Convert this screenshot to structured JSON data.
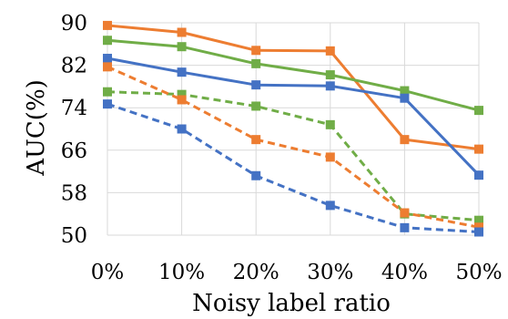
{
  "chart_data": {
    "type": "line",
    "title": "",
    "xlabel": "Noisy label ratio",
    "ylabel": "AUC(%)",
    "categories": [
      "0%",
      "10%",
      "20%",
      "30%",
      "40%",
      "50%"
    ],
    "ylim": [
      50,
      90
    ],
    "yticks": [
      50,
      58,
      66,
      74,
      82,
      90
    ],
    "grid": "both",
    "legend": "none",
    "series": [
      {
        "color": "#ed7d31",
        "dash": "solid",
        "marker": "square",
        "values": [
          89.5,
          88.2,
          84.8,
          84.7,
          68.0,
          66.2
        ]
      },
      {
        "color": "#70ad47",
        "dash": "solid",
        "marker": "square",
        "values": [
          86.7,
          85.5,
          82.3,
          80.2,
          77.2,
          73.5
        ]
      },
      {
        "color": "#4472c4",
        "dash": "solid",
        "marker": "square",
        "values": [
          83.3,
          80.7,
          78.3,
          78.1,
          75.8,
          61.3
        ]
      },
      {
        "color": "#70ad47",
        "dash": "dashed",
        "marker": "square",
        "values": [
          77.0,
          76.5,
          74.3,
          70.8,
          54.0,
          52.8
        ]
      },
      {
        "color": "#ed7d31",
        "dash": "dashed",
        "marker": "square",
        "values": [
          81.7,
          75.5,
          68.0,
          64.7,
          54.2,
          51.5
        ]
      },
      {
        "color": "#4472c4",
        "dash": "dashed",
        "marker": "square",
        "values": [
          74.7,
          70.0,
          61.2,
          55.6,
          51.4,
          50.6
        ]
      }
    ]
  }
}
